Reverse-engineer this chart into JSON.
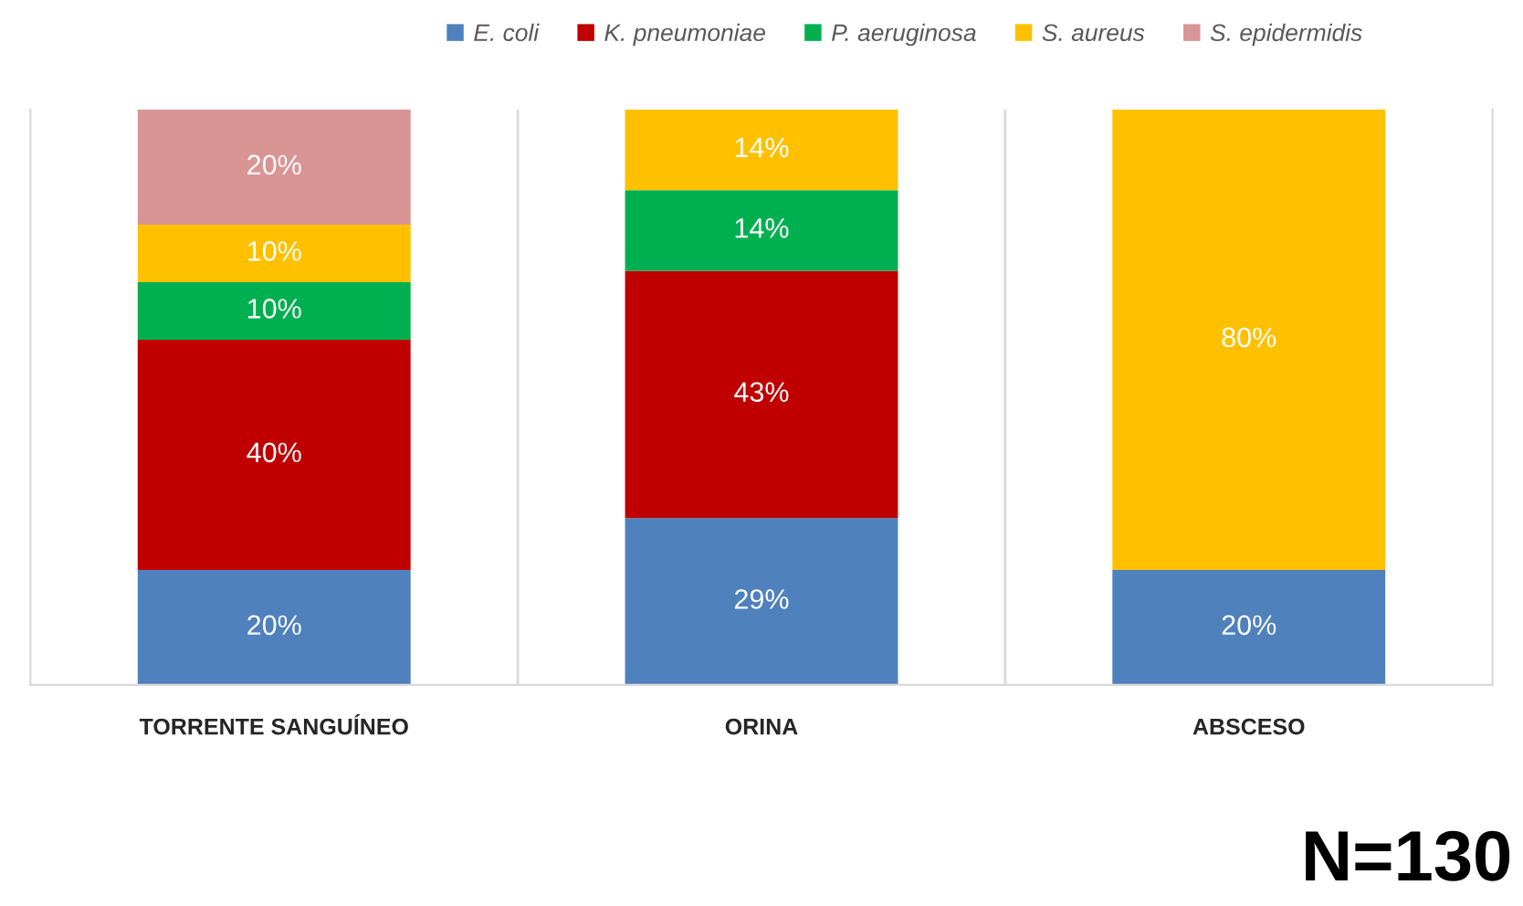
{
  "chart_data": {
    "type": "bar",
    "stacked": true,
    "categories": [
      "TORRENTE SANGUÍNEO",
      "ORINA",
      "ABSCESO"
    ],
    "series": [
      {
        "name": "E. coli",
        "color": "#4f81bd",
        "values": [
          20,
          29,
          20
        ],
        "value_labels": [
          "20%",
          "29%",
          "20%"
        ]
      },
      {
        "name": "K. pneumoniae",
        "color": "#c00000",
        "values": [
          40,
          43,
          null
        ],
        "value_labels": [
          "40%",
          "43%",
          null
        ]
      },
      {
        "name": "P. aeruginosa",
        "color": "#00b050",
        "values": [
          10,
          14,
          null
        ],
        "value_labels": [
          "10%",
          "14%",
          null
        ]
      },
      {
        "name": "S. aureus",
        "color": "#ffc000",
        "values": [
          10,
          14,
          80
        ],
        "value_labels": [
          "10%",
          "14%",
          "80%"
        ]
      },
      {
        "name": "S. epidermidis",
        "color": "#d99594",
        "values": [
          20,
          null,
          null
        ],
        "value_labels": [
          "20%",
          null,
          null
        ]
      }
    ],
    "grid": "x",
    "legend": "top",
    "annotations": [
      "N=130"
    ]
  }
}
